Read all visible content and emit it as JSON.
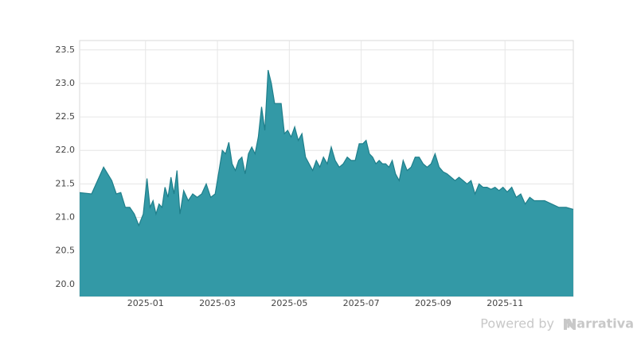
{
  "chart_data": {
    "type": "area",
    "x": [
      "2024-11",
      "2024-11",
      "2024-11",
      "2024-12",
      "2024-12",
      "2024-12",
      "2024-12",
      "2024-12",
      "2024-12",
      "2024-12",
      "2024-12",
      "2025-01",
      "2025-01",
      "2025-01",
      "2025-01",
      "2025-01",
      "2025-01",
      "2025-01",
      "2025-01",
      "2025-01",
      "2025-01",
      "2025-01",
      "2025-01",
      "2025-02",
      "2025-02",
      "2025-02",
      "2025-02",
      "2025-02",
      "2025-02",
      "2025-02",
      "2025-02",
      "2025-03",
      "2025-03",
      "2025-03",
      "2025-03",
      "2025-03",
      "2025-03",
      "2025-03",
      "2025-03",
      "2025-03",
      "2025-03",
      "2025-03",
      "2025-04",
      "2025-04",
      "2025-04",
      "2025-04",
      "2025-04",
      "2025-04",
      "2025-04",
      "2025-04",
      "2025-04",
      "2025-04",
      "2025-04",
      "2025-05",
      "2025-05",
      "2025-05",
      "2025-05",
      "2025-05",
      "2025-05",
      "2025-05",
      "2025-05",
      "2025-05",
      "2025-05",
      "2025-06",
      "2025-06",
      "2025-06",
      "2025-06",
      "2025-06",
      "2025-06",
      "2025-06",
      "2025-06",
      "2025-06",
      "2025-07",
      "2025-07",
      "2025-07",
      "2025-07",
      "2025-07",
      "2025-07",
      "2025-07",
      "2025-07",
      "2025-07",
      "2025-07",
      "2025-07",
      "2025-08",
      "2025-08",
      "2025-08",
      "2025-08",
      "2025-08",
      "2025-08",
      "2025-08",
      "2025-08",
      "2025-08",
      "2025-09",
      "2025-09",
      "2025-09",
      "2025-09",
      "2025-09",
      "2025-09",
      "2025-09",
      "2025-09",
      "2025-09",
      "2025-10",
      "2025-10",
      "2025-10",
      "2025-10",
      "2025-10",
      "2025-10",
      "2025-10",
      "2025-10",
      "2025-10",
      "2025-11",
      "2025-11",
      "2025-11",
      "2025-11",
      "2025-11",
      "2025-11",
      "2025-11",
      "2025-11",
      "2025-12",
      "2025-12",
      "2025-12",
      "2025-12",
      "2025-12"
    ],
    "values": [
      21.37,
      21.35,
      21.75,
      21.55,
      21.35,
      21.37,
      21.15,
      21.15,
      21.05,
      20.88,
      21.05,
      21.58,
      21.15,
      21.25,
      21.05,
      21.2,
      21.15,
      21.45,
      21.3,
      21.6,
      21.35,
      21.7,
      21.05,
      21.4,
      21.25,
      21.35,
      21.3,
      21.35,
      21.5,
      21.3,
      21.35,
      21.7,
      22.0,
      21.95,
      22.12,
      21.8,
      21.7,
      21.85,
      21.9,
      21.65,
      21.95,
      22.05,
      21.95,
      22.2,
      22.65,
      22.3,
      23.2,
      23.0,
      22.7,
      22.7,
      22.7,
      22.25,
      22.3,
      22.2,
      22.35,
      22.15,
      22.25,
      21.9,
      21.8,
      21.7,
      21.85,
      21.75,
      21.9,
      21.8,
      22.05,
      21.85,
      21.75,
      21.8,
      21.9,
      21.85,
      21.85,
      22.1,
      22.1,
      22.15,
      21.95,
      21.9,
      21.8,
      21.85,
      21.8,
      21.8,
      21.75,
      21.85,
      21.65,
      21.55,
      21.85,
      21.7,
      21.75,
      21.9,
      21.9,
      21.8,
      21.75,
      21.8,
      21.95,
      21.75,
      21.68,
      21.65,
      21.6,
      21.55,
      21.6,
      21.55,
      21.5,
      21.55,
      21.35,
      21.5,
      21.45,
      21.45,
      21.42,
      21.45,
      21.4,
      21.45,
      21.38,
      21.45,
      21.3,
      21.35,
      21.2,
      21.3,
      21.25,
      21.25,
      21.25,
      21.2,
      21.15,
      21.15,
      21.12
    ],
    "color": "#3399a6",
    "line_color": "#1f7f8b",
    "ylim": [
      19.82,
      23.64
    ],
    "yticks": [
      {
        "value": 20,
        "label": "20.0"
      },
      20.5,
      {
        "value": 21,
        "label": "21.0"
      },
      21.5,
      {
        "value": 22,
        "label": "22.0"
      },
      22.5,
      {
        "value": 23,
        "label": "23.0"
      },
      23.5
    ],
    "xticks": [
      "2025-01",
      "2025-03",
      "2025-05",
      "2025-07",
      "2025-09",
      "2025-11"
    ],
    "grid": true
  },
  "watermark": {
    "prefix": "Powered by",
    "brand": "Narrativa"
  }
}
